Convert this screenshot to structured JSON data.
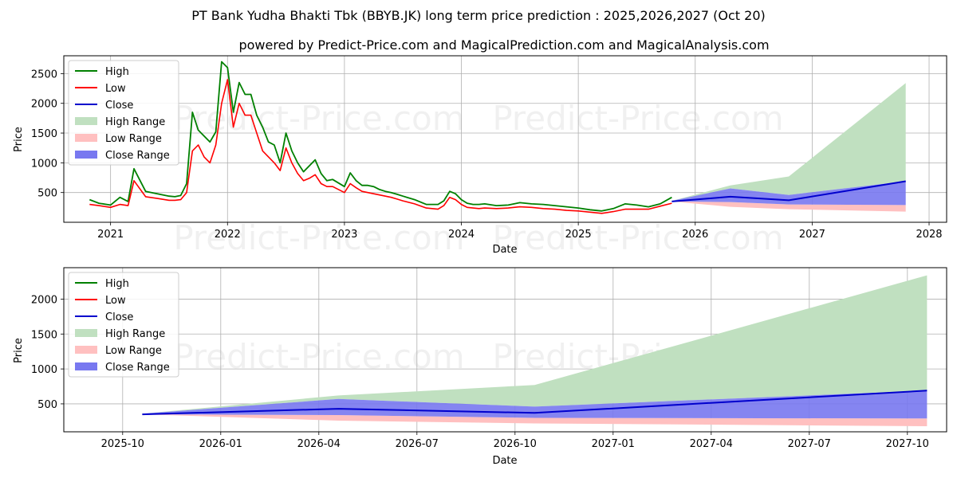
{
  "title": "PT Bank Yudha Bhakti Tbk (BBYB.JK) long term price prediction : 2025,2026,2027 (Oct 20)",
  "subtitle": "powered by Predict-Price.com and MagicalPrediction.com and MagicalAnalysis.com",
  "watermark": "Predict-Price.com",
  "colors": {
    "high": "#008000",
    "low": "#ff0000",
    "close": "#0000cd",
    "high_range": "#c0e0c0",
    "low_range": "#ffc0c0",
    "close_range": "#7878f0"
  },
  "legend": [
    "High",
    "Low",
    "Close",
    "High Range",
    "Low Range",
    "Close Range"
  ],
  "chart_data": [
    {
      "type": "line",
      "name": "history-and-forecast",
      "xlabel": "Date",
      "ylabel": "Price",
      "xlim": [
        2020.6,
        2028.15
      ],
      "ylim": [
        0,
        2800
      ],
      "xticks": [
        2021,
        2022,
        2023,
        2024,
        2025,
        2026,
        2027,
        2028
      ],
      "xtick_labels": [
        "2021",
        "2022",
        "2023",
        "2024",
        "2025",
        "2026",
        "2027",
        "2028"
      ],
      "yticks": [
        500,
        1000,
        1500,
        2000,
        2500
      ],
      "ytick_labels": [
        "500",
        "1000",
        "1500",
        "2000",
        "2500"
      ],
      "grid": true,
      "legend_position": "top-left",
      "history": {
        "x": [
          2020.82,
          2020.9,
          2021.0,
          2021.08,
          2021.15,
          2021.2,
          2021.3,
          2021.4,
          2021.5,
          2021.55,
          2021.6,
          2021.65,
          2021.7,
          2021.75,
          2021.8,
          2021.85,
          2021.9,
          2021.95,
          2022.0,
          2022.05,
          2022.1,
          2022.15,
          2022.2,
          2022.25,
          2022.3,
          2022.35,
          2022.4,
          2022.45,
          2022.5,
          2022.55,
          2022.6,
          2022.65,
          2022.7,
          2022.75,
          2022.8,
          2022.85,
          2022.9,
          2023.0,
          2023.05,
          2023.1,
          2023.15,
          2023.2,
          2023.25,
          2023.3,
          2023.35,
          2023.4,
          2023.45,
          2023.5,
          2023.6,
          2023.7,
          2023.8,
          2023.85,
          2023.9,
          2023.95,
          2024.0,
          2024.05,
          2024.1,
          2024.15,
          2024.2,
          2024.3,
          2024.4,
          2024.5,
          2024.6,
          2024.7,
          2024.8,
          2024.9,
          2025.0,
          2025.1,
          2025.2,
          2025.3,
          2025.4,
          2025.5,
          2025.6,
          2025.7,
          2025.8
        ],
        "high": [
          380,
          320,
          290,
          420,
          350,
          900,
          520,
          480,
          440,
          430,
          450,
          650,
          1850,
          1550,
          1450,
          1350,
          1520,
          2700,
          2600,
          1850,
          2350,
          2150,
          2150,
          1800,
          1600,
          1350,
          1300,
          1000,
          1500,
          1200,
          1000,
          850,
          950,
          1050,
          820,
          700,
          720,
          600,
          830,
          700,
          620,
          620,
          600,
          550,
          520,
          500,
          470,
          440,
          380,
          300,
          300,
          360,
          520,
          480,
          380,
          320,
          300,
          300,
          310,
          280,
          290,
          330,
          310,
          300,
          280,
          260,
          240,
          210,
          190,
          230,
          310,
          290,
          260,
          310,
          420
        ],
        "low": [
          300,
          280,
          250,
          300,
          280,
          700,
          430,
          400,
          370,
          370,
          380,
          500,
          1200,
          1300,
          1100,
          1000,
          1300,
          2000,
          2400,
          1600,
          2000,
          1800,
          1800,
          1500,
          1200,
          1100,
          1000,
          870,
          1250,
          1000,
          820,
          700,
          740,
          800,
          650,
          600,
          600,
          500,
          650,
          580,
          520,
          500,
          480,
          460,
          440,
          420,
          390,
          360,
          310,
          240,
          220,
          280,
          420,
          380,
          300,
          250,
          240,
          230,
          240,
          230,
          240,
          260,
          250,
          230,
          220,
          200,
          190,
          170,
          150,
          180,
          220,
          220,
          220,
          270,
          320
        ]
      },
      "forecast": {
        "x": [
          2025.8,
          2026.3,
          2026.8,
          2027.8
        ],
        "close": [
          350,
          430,
          370,
          690
        ],
        "high_range": [
          360,
          620,
          770,
          2340
        ],
        "low_range": [
          350,
          260,
          220,
          180
        ],
        "close_upper": [
          360,
          570,
          460,
          690
        ],
        "close_lower": [
          350,
          340,
          300,
          290
        ]
      }
    },
    {
      "type": "line",
      "name": "forecast-detail",
      "xlabel": "Date",
      "ylabel": "Price",
      "xlim": [
        2025.6,
        2027.85
      ],
      "ylim": [
        100,
        2450
      ],
      "xticks": [
        2025.75,
        2026.0,
        2026.25,
        2026.5,
        2026.75,
        2027.0,
        2027.25,
        2027.5,
        2027.75
      ],
      "xtick_labels": [
        "2025-10",
        "2026-01",
        "2026-04",
        "2026-07",
        "2026-10",
        "2027-01",
        "2027-04",
        "2027-07",
        "2027-10"
      ],
      "yticks": [
        500,
        1000,
        1500,
        2000
      ],
      "ytick_labels": [
        "500",
        "1000",
        "1500",
        "2000"
      ],
      "grid": true,
      "legend_position": "top-left",
      "forecast": {
        "x": [
          2025.8,
          2026.3,
          2026.8,
          2027.8
        ],
        "close": [
          350,
          430,
          370,
          690
        ],
        "high_range": [
          360,
          620,
          770,
          2340
        ],
        "low_range": [
          350,
          260,
          220,
          180
        ],
        "close_upper": [
          360,
          570,
          460,
          690
        ],
        "close_lower": [
          350,
          340,
          300,
          290
        ]
      }
    }
  ]
}
